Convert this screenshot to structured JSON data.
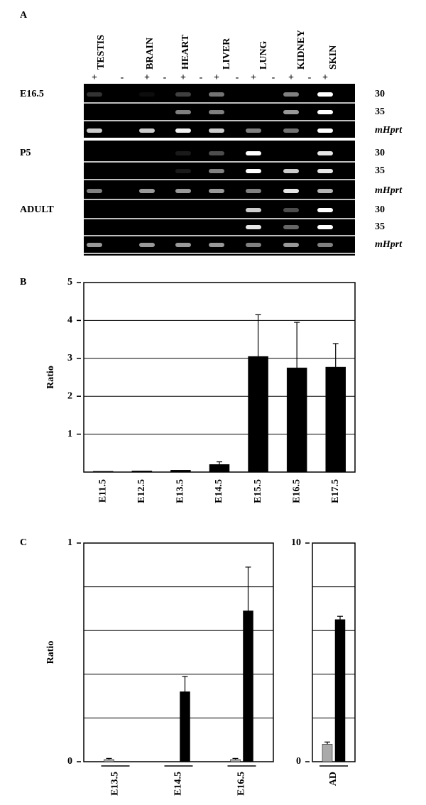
{
  "panel_a": {
    "panel_label": "A",
    "tissues": [
      "TESTIS",
      "BRAIN",
      "HEART",
      "LIVER",
      "LUNG",
      "KIDNEY",
      "SKIN"
    ],
    "lanes": [
      "+",
      "-",
      "+",
      "-",
      "+",
      "-",
      "+",
      "-",
      "+",
      "-",
      "+",
      "-",
      "+"
    ],
    "groups": [
      {
        "label": "E16.5",
        "rows": [
          "30",
          "35",
          "mHprt"
        ]
      },
      {
        "label": "P5",
        "rows": [
          "30",
          "35",
          "mHprt"
        ]
      },
      {
        "label": "ADULT",
        "rows": [
          "30",
          "35",
          "mHprt"
        ]
      }
    ]
  },
  "chart_data": [
    {
      "type": "bar",
      "panel_label": "B",
      "ylabel": "Ratio",
      "categories": [
        "E11.5",
        "E12.5",
        "E13.5",
        "E14.5",
        "E15.5",
        "E16.5",
        "E17.5"
      ],
      "series": [
        {
          "color": "#000000",
          "values": [
            0.02,
            0.03,
            0.05,
            0.2,
            3.05,
            2.75,
            2.77
          ],
          "errors": [
            0,
            0,
            0,
            0.07,
            1.1,
            1.2,
            0.62
          ]
        }
      ],
      "ylim": [
        0,
        5
      ],
      "yticks": [
        1,
        2,
        3,
        4,
        5
      ],
      "grid": true
    },
    {
      "type": "bar",
      "panel_label": "C",
      "ylabel": "Ratio",
      "categories": [
        "E13.5",
        "E14.5",
        "E16.5"
      ],
      "series": [
        {
          "color": "#aaaaaa",
          "values": [
            0.01,
            0,
            0.01
          ],
          "errors": [
            0.005,
            0,
            0.005
          ]
        },
        {
          "color": "#000000",
          "values": [
            0,
            0.32,
            0.69
          ],
          "errors": [
            0,
            0.07,
            0.2
          ]
        }
      ],
      "ylim": [
        0,
        1
      ],
      "yticks": [
        0,
        1
      ],
      "gridlines": [
        0.2,
        0.4,
        0.6,
        0.8
      ]
    },
    {
      "type": "bar",
      "categories": [
        "AD"
      ],
      "series": [
        {
          "color": "#aaaaaa",
          "values": [
            0.8
          ],
          "errors": [
            0.1
          ]
        },
        {
          "color": "#000000",
          "values": [
            6.5
          ],
          "errors": [
            0.15
          ]
        }
      ],
      "ylim": [
        0,
        10
      ],
      "yticks": [
        0,
        10
      ],
      "gridlines": [
        2,
        4,
        6,
        8
      ]
    }
  ]
}
